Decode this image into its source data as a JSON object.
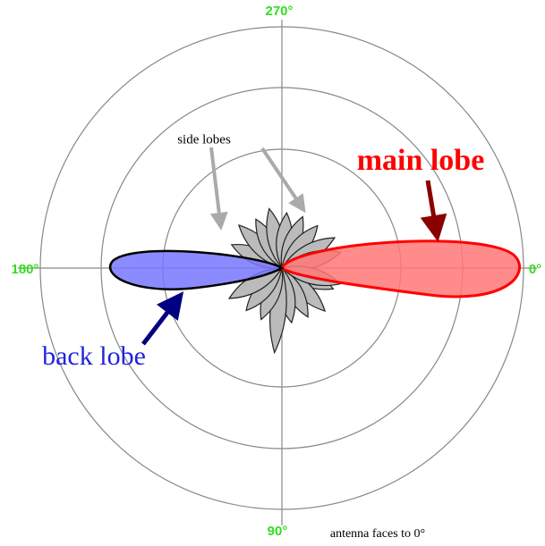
{
  "angle_labels": {
    "top": "270°",
    "left": "180°",
    "right": "0°",
    "bottom": "90°"
  },
  "annotations": {
    "side_lobes": "side lobes",
    "main_lobe": "main lobe",
    "back_lobe": "back lobe",
    "note": "antenna faces to 0°"
  }
}
